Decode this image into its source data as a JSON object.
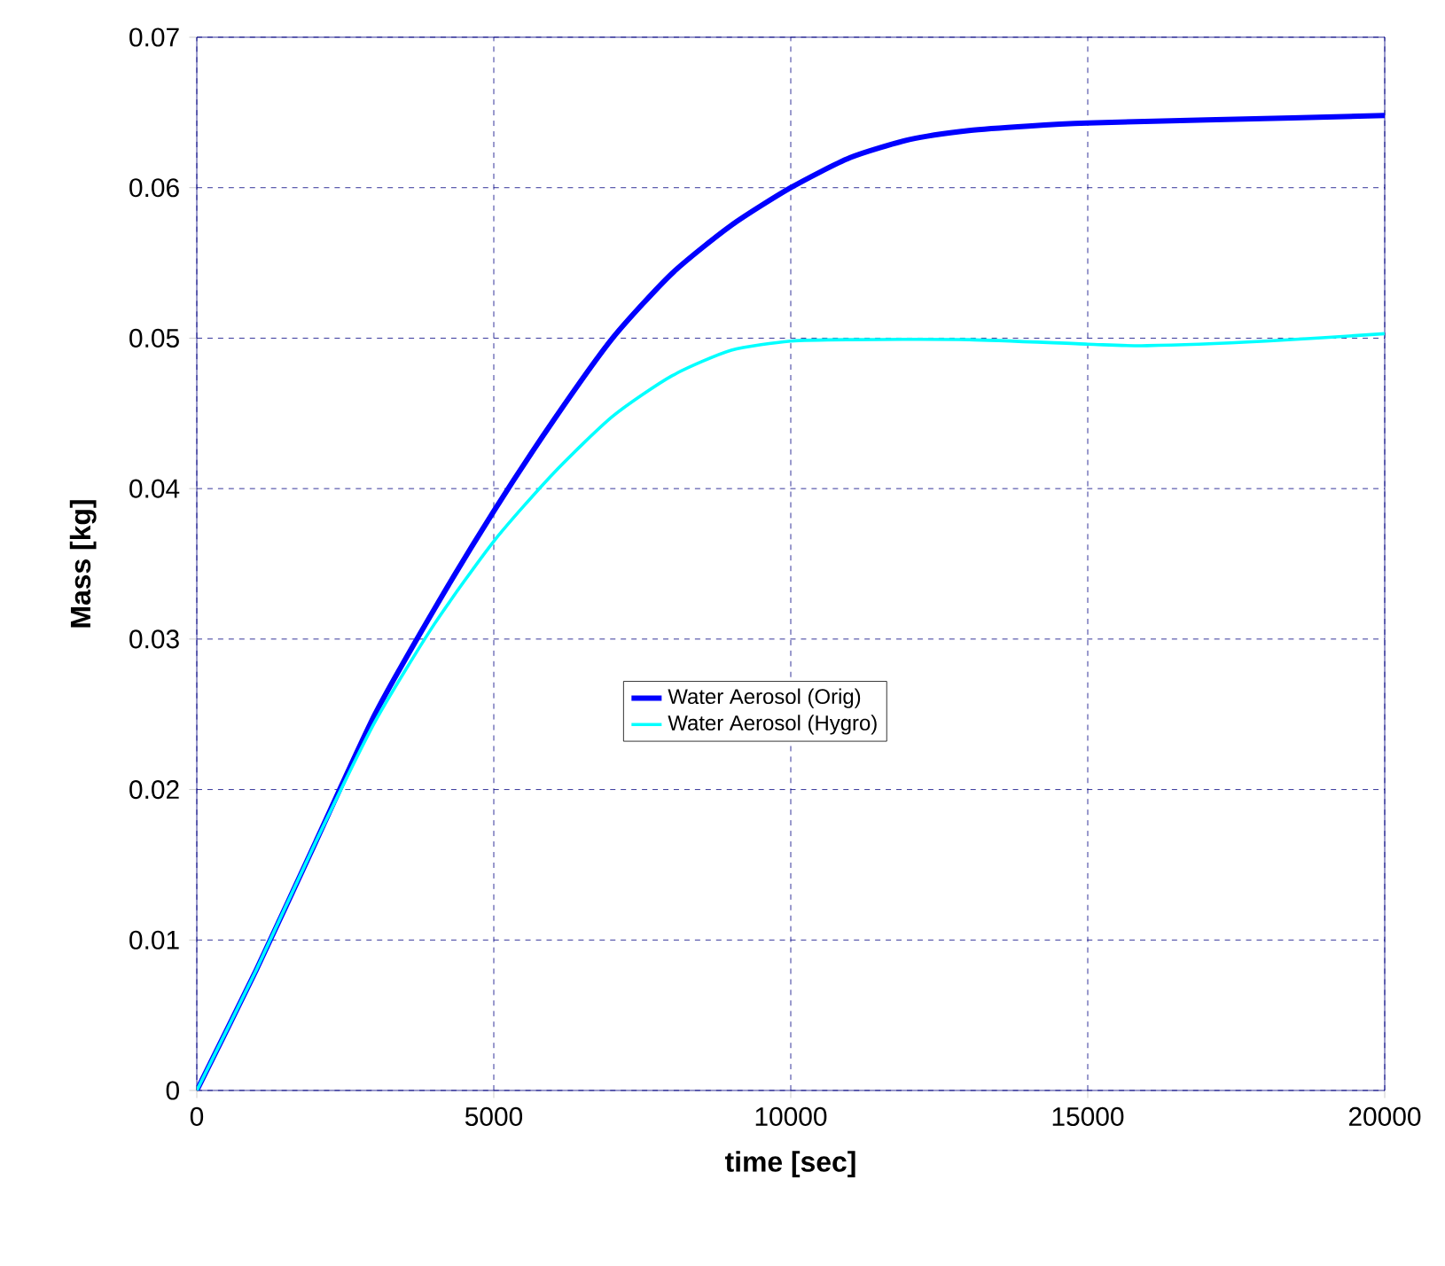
{
  "chart_data": {
    "type": "line",
    "xlabel": "time [sec]",
    "ylabel": "Mass [kg]",
    "xlim": [
      0,
      20000
    ],
    "xticks": [
      0,
      5000,
      10000,
      15000,
      20000
    ],
    "ylim": [
      0,
      0.07
    ],
    "yticks": [
      0,
      0.01,
      0.02,
      0.03,
      0.04,
      0.05,
      0.06,
      0.07
    ],
    "grid": true,
    "legend": "center",
    "marker": "none",
    "line_style": "solid",
    "series": [
      {
        "name": "Water Aerosol (Orig)",
        "color": "#0000ff",
        "x": [
          0,
          1000,
          2000,
          3000,
          4000,
          5000,
          6000,
          7000,
          8000,
          9000,
          10000,
          11000,
          12000,
          13000,
          14000,
          15000,
          17000,
          20000
        ],
        "values": [
          0,
          0.008,
          0.0165,
          0.025,
          0.032,
          0.0385,
          0.0445,
          0.05,
          0.0543,
          0.0575,
          0.06,
          0.062,
          0.0632,
          0.0638,
          0.0641,
          0.0643,
          0.0645,
          0.0648
        ]
      },
      {
        "name": "Water Aerosol (Hygro)",
        "color": "#00ffff",
        "x": [
          0,
          1000,
          2000,
          3000,
          4000,
          5000,
          6000,
          7000,
          8000,
          9000,
          10000,
          11000,
          13000,
          15000,
          16000,
          18000,
          20000
        ],
        "values": [
          0,
          0.008,
          0.0165,
          0.0245,
          0.031,
          0.0365,
          0.041,
          0.0448,
          0.0475,
          0.0492,
          0.0498,
          0.0499,
          0.0499,
          0.0496,
          0.0495,
          0.0498,
          0.0503
        ]
      }
    ]
  }
}
